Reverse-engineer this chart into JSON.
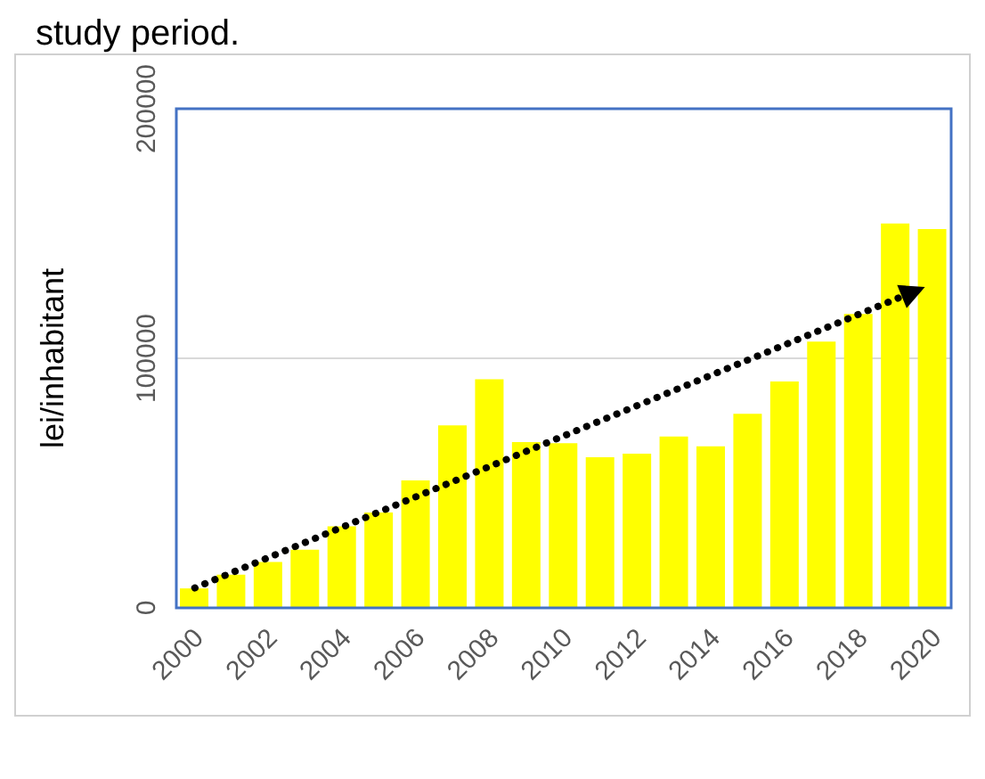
{
  "chart_data": {
    "type": "bar",
    "ylabel": "lei/inhabitant",
    "annotations": [
      "study period."
    ],
    "categories": [
      "2000",
      null,
      "2002",
      null,
      "2004",
      null,
      "2006",
      null,
      "2008",
      null,
      "2010",
      null,
      "2012",
      null,
      "2014",
      null,
      "2016",
      null,
      "2018",
      null,
      "2020"
    ],
    "series": [
      {
        "color": "#ffff00",
        "values": [
          7800,
          13300,
          18400,
          23300,
          32700,
          38200,
          51100,
          73100,
          91600,
          66400,
          66000,
          60400,
          61800,
          68700,
          64700,
          77800,
          90700,
          106700,
          117800,
          154000,
          151800
        ]
      }
    ],
    "ylim": [
      0,
      200000
    ],
    "yticks": [
      0,
      100000,
      200000
    ],
    "grid": "y",
    "legend": false
  }
}
